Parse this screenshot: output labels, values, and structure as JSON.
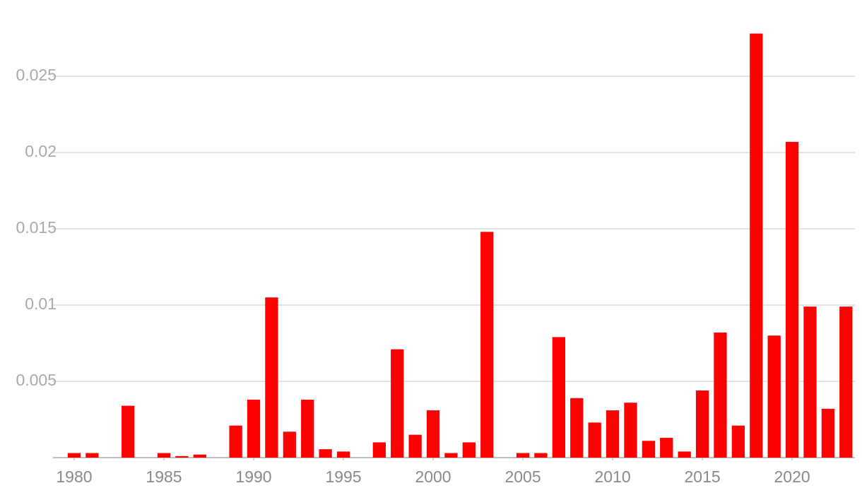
{
  "chart_data": {
    "type": "bar",
    "x": [
      1980,
      1981,
      1982,
      1983,
      1984,
      1985,
      1986,
      1987,
      1988,
      1989,
      1990,
      1991,
      1992,
      1993,
      1994,
      1995,
      1996,
      1997,
      1998,
      1999,
      2000,
      2001,
      2002,
      2003,
      2004,
      2005,
      2006,
      2007,
      2008,
      2009,
      2010,
      2011,
      2012,
      2013,
      2014,
      2015,
      2016,
      2017,
      2018,
      2019,
      2020,
      2021,
      2022,
      2023
    ],
    "values": [
      0.0003,
      0.0003,
      0,
      0.0034,
      0,
      0.0003,
      0.0001,
      0.0002,
      0,
      0.0021,
      0.0038,
      0.0105,
      0.0017,
      0.0038,
      0.00055,
      0.0004,
      0,
      0.001,
      0.0071,
      0.0015,
      0.0031,
      0.0003,
      0.001,
      0.0148,
      0,
      0.0003,
      0.0003,
      0.0079,
      0.0039,
      0.0023,
      0.0031,
      0.0036,
      0.0011,
      0.0013,
      0.0004,
      0.0044,
      0.0082,
      0.0021,
      0.0278,
      0.008,
      0.0207,
      0.0099,
      0.0032,
      0.0099
    ],
    "color": "#ff0000",
    "xlim": [
      1978.8,
      2023.5
    ],
    "xticks": [
      1980,
      1985,
      1990,
      1995,
      2000,
      2005,
      2010,
      2015,
      2020
    ],
    "ylim": [
      0,
      0.028
    ],
    "yticks": [
      0.005,
      0.01,
      0.015,
      0.02,
      0.025
    ],
    "grid": true
  }
}
